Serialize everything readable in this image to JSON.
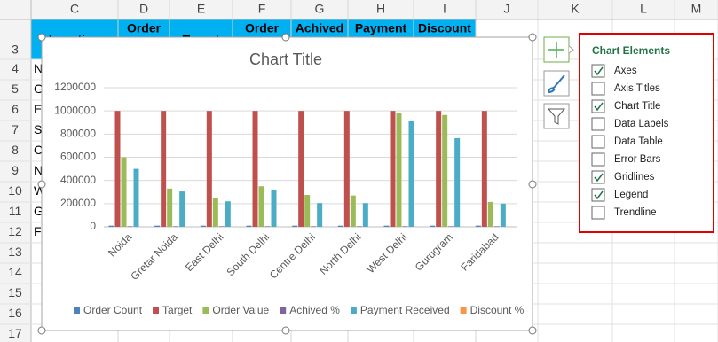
{
  "sheet": {
    "columns": [
      "C",
      "D",
      "E",
      "F",
      "G",
      "H",
      "I",
      "J",
      "K",
      "L",
      "M"
    ],
    "rows": [
      3,
      4,
      5,
      6,
      7,
      8,
      9,
      10,
      11,
      12,
      13,
      14,
      15,
      16,
      17
    ],
    "header_cells": [
      "Location",
      "Order",
      "Target",
      "Order",
      "Achived",
      "Payment",
      "Discount"
    ],
    "column_c_cells": [
      "N",
      "G",
      "Ea",
      "So",
      "Ce",
      "N",
      "W",
      "G",
      "Fa"
    ]
  },
  "chart_data": {
    "type": "bar",
    "title": "Chart Title",
    "categories": [
      "Noida",
      "Gretar Noida",
      "East Delhi",
      "South Delhi",
      "Centre Delhi",
      "North Delhi",
      "West Delhi",
      "Gurugram",
      "Faridabad"
    ],
    "series": [
      {
        "name": "Order Count",
        "color": "#4f81bd",
        "values": [
          10000,
          10000,
          10000,
          10000,
          10000,
          10000,
          10000,
          10000,
          10000
        ]
      },
      {
        "name": "Target",
        "color": "#c0504d",
        "values": [
          1000000,
          1000000,
          1000000,
          1000000,
          1000000,
          1000000,
          1000000,
          1000000,
          1000000
        ]
      },
      {
        "name": "Order Value",
        "color": "#9bbb59",
        "values": [
          600000,
          330000,
          250000,
          350000,
          275000,
          270000,
          980000,
          965000,
          215000
        ]
      },
      {
        "name": "Achived %",
        "color": "#8064a2",
        "values": [
          5000,
          5000,
          5000,
          5000,
          5000,
          5000,
          5000,
          5000,
          5000
        ]
      },
      {
        "name": "Payment Received",
        "color": "#4bacc6",
        "values": [
          500000,
          305000,
          220000,
          315000,
          205000,
          205000,
          910000,
          765000,
          200000
        ]
      },
      {
        "name": "Discount %",
        "color": "#f79646",
        "values": [
          0,
          0,
          0,
          0,
          0,
          0,
          0,
          0,
          0
        ]
      }
    ],
    "ylim": [
      0,
      1200000
    ],
    "yticks": [
      0,
      200000,
      400000,
      600000,
      800000,
      1000000,
      1200000
    ],
    "grid": true,
    "legend": "bottom"
  },
  "chart_elements": {
    "title": "Chart Elements",
    "items": [
      {
        "label": "Axes",
        "checked": true
      },
      {
        "label": "Axis Titles",
        "checked": false
      },
      {
        "label": "Chart Title",
        "checked": true
      },
      {
        "label": "Data Labels",
        "checked": false
      },
      {
        "label": "Data Table",
        "checked": false
      },
      {
        "label": "Error Bars",
        "checked": false
      },
      {
        "label": "Gridlines",
        "checked": true
      },
      {
        "label": "Legend",
        "checked": true
      },
      {
        "label": "Trendline",
        "checked": false
      }
    ]
  }
}
